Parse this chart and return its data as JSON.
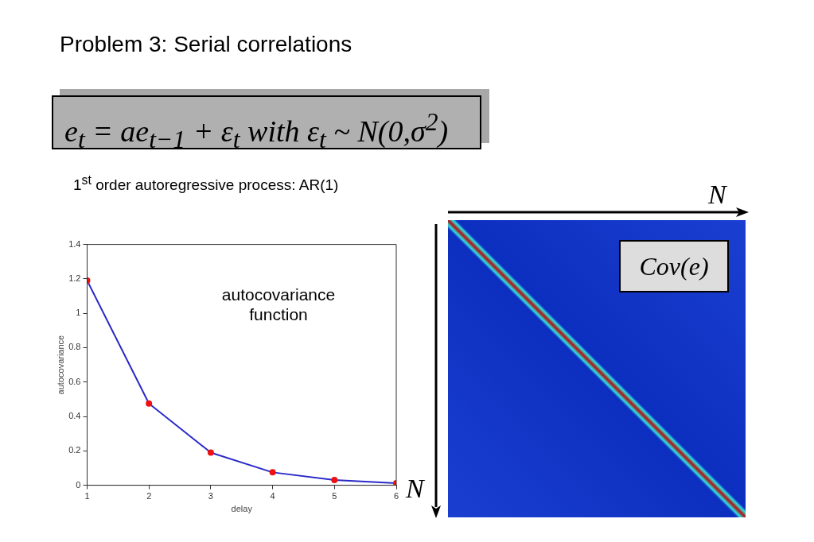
{
  "chart_data": {
    "type": "line",
    "title": "Problem 3: Serial correlations",
    "xlabel": "delay",
    "ylabel": "autocovariance",
    "x": [
      1,
      2,
      3,
      4,
      5,
      6
    ],
    "series": [
      {
        "color": "#2a2ac8",
        "values": [
          1.19,
          0.475,
          0.19,
          0.075,
          0.03,
          0.012
        ]
      }
    ],
    "xlim": [
      1,
      6
    ],
    "xticks": [
      1,
      2,
      3,
      4,
      5,
      6
    ],
    "ylim": [
      0,
      1.4
    ],
    "yticks": [
      0,
      0.2,
      0.4,
      0.6,
      0.8,
      1,
      1.2,
      1.4
    ],
    "marker": "circle",
    "grid": false,
    "legend": false,
    "annotations": [
      "e$_{t}$ = ae$_{t−1}$ + ε$_{t}$  with  ε$_{t}$ ~ N(0,σ$^{2}$)",
      "1$^{st}$ order autoregressive process: AR(1)",
      "autocovariance function",
      "N",
      "N",
      "Cov(e)"
    ]
  }
}
